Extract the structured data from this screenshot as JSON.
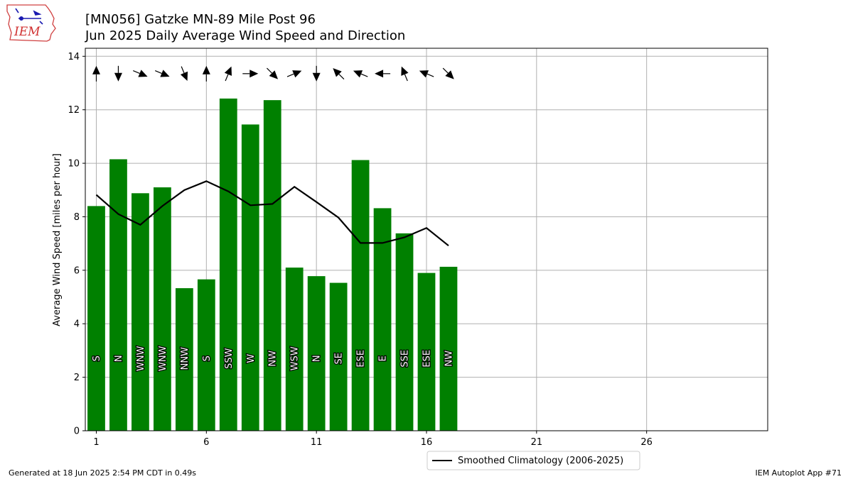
{
  "header": {
    "title_line1": "[MN056] Gatzke MN-89 Mile Post 96",
    "title_line2": "Jun 2025 Daily Average Wind Speed and Direction",
    "logo_text": "IEM"
  },
  "footer": {
    "generated": "Generated at 18 Jun 2025 2:54 PM CDT in 0.49s",
    "app": "IEM Autoplot App #71"
  },
  "colors": {
    "bar": "#008000",
    "climatology_line": "#000000",
    "grid": "#b0b0b0"
  },
  "chart_data": {
    "type": "bar",
    "title": "[MN056] Gatzke MN-89 Mile Post 96",
    "subtitle": "Jun 2025 Daily Average Wind Speed and Direction",
    "xlabel": "",
    "ylabel": "Average Wind Speed [miles per hour]",
    "xlim": [
      0.5,
      31.5
    ],
    "ylim": [
      0,
      14.3
    ],
    "xticks": [
      1,
      6,
      11,
      16,
      21,
      26
    ],
    "yticks": [
      0,
      2,
      4,
      6,
      8,
      10,
      12,
      14
    ],
    "grid": true,
    "legend_position": "bottom-center",
    "days": [
      1,
      2,
      3,
      4,
      5,
      6,
      7,
      8,
      9,
      10,
      11,
      12,
      13,
      14,
      15,
      16,
      17
    ],
    "series": [
      {
        "name": "",
        "type": "bar",
        "values": [
          8.4,
          10.15,
          8.88,
          9.1,
          5.33,
          5.66,
          12.42,
          11.45,
          12.36,
          6.1,
          5.78,
          5.53,
          10.12,
          8.32,
          7.38,
          5.9,
          6.13
        ]
      },
      {
        "name": "Smoothed Climatology (2006-2025)",
        "type": "line",
        "values": [
          8.82,
          8.1,
          7.7,
          8.4,
          9.0,
          9.33,
          8.95,
          8.43,
          8.48,
          9.12,
          8.55,
          7.97,
          7.02,
          7.02,
          7.23,
          7.58,
          6.92
        ]
      }
    ],
    "direction_labels": [
      "S",
      "N",
      "WNW",
      "WNW",
      "NNW",
      "S",
      "SSW",
      "W",
      "NW",
      "WSW",
      "N",
      "SE",
      "ESE",
      "E",
      "SSE",
      "ESE",
      "NW"
    ],
    "direction_degrees": [
      180,
      0,
      292.5,
      292.5,
      337.5,
      180,
      202.5,
      270,
      315,
      247.5,
      0,
      135,
      112.5,
      90,
      157.5,
      112.5,
      315
    ]
  }
}
